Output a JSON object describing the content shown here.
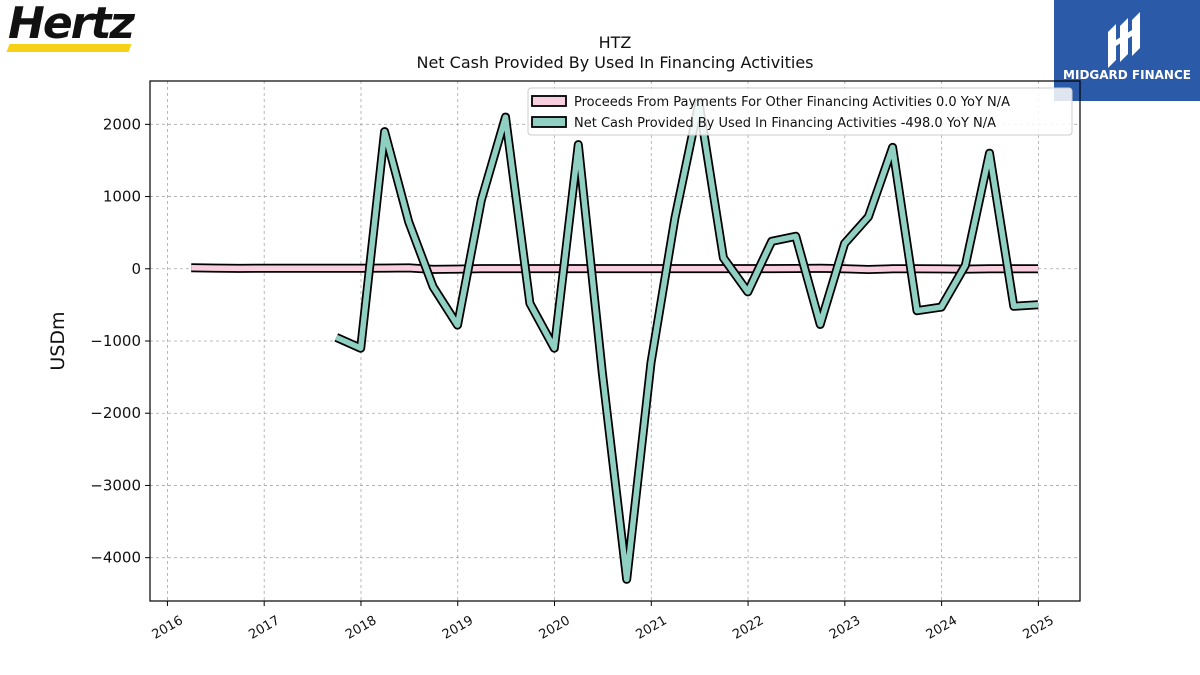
{
  "logos": {
    "left_text": "Hertz",
    "left_accent": "#f7d117",
    "right_text": "MIDGARD FINANCE",
    "right_color": "#2b5aa8"
  },
  "chart_data": {
    "type": "line",
    "title": "HTZ",
    "subtitle": "Net Cash Provided By Used In Financing Activities",
    "ylabel": "USDm",
    "xlabel": "",
    "xlim": [
      2015.82,
      2025.43
    ],
    "ylim": [
      -4600,
      2600
    ],
    "x_ticks": [
      2016,
      2017,
      2018,
      2019,
      2020,
      2021,
      2022,
      2023,
      2024,
      2025
    ],
    "x_tick_labels": [
      "2016",
      "2017",
      "2018",
      "2019",
      "2020",
      "2021",
      "2022",
      "2023",
      "2024",
      "2025"
    ],
    "y_ticks": [
      -4000,
      -3000,
      -2000,
      -1000,
      0,
      1000,
      2000
    ],
    "y_tick_labels": [
      "−4000",
      "−3000",
      "−2000",
      "−1000",
      "0",
      "1000",
      "2000"
    ],
    "grid": true,
    "legend_position": "top-right",
    "series": [
      {
        "name": "Proceeds From Payments For Other Financing Activities  0.0 YoY N/A",
        "color": "#f9cfe0",
        "x": [
          "2016-03-31",
          "2016-06-30",
          "2016-09-30",
          "2016-12-31",
          "2017-03-31",
          "2017-06-30",
          "2017-09-30",
          "2017-12-31",
          "2018-03-31",
          "2018-06-30",
          "2018-09-30",
          "2018-12-31",
          "2019-03-31",
          "2019-06-30",
          "2019-09-30",
          "2019-12-31",
          "2020-03-31",
          "2020-06-30",
          "2020-09-30",
          "2020-12-31",
          "2021-03-31",
          "2021-06-30",
          "2021-09-30",
          "2021-12-31",
          "2022-03-31",
          "2022-06-30",
          "2022-09-30",
          "2022-12-31",
          "2023-03-31",
          "2023-06-30",
          "2023-09-30",
          "2023-12-31",
          "2024-03-31",
          "2024-06-30",
          "2024-09-30",
          "2024-12-31"
        ],
        "y": [
          15,
          10,
          5,
          8,
          6,
          6,
          8,
          8,
          9,
          12,
          -8,
          -5,
          3,
          3,
          3,
          3,
          3,
          3,
          3,
          3,
          3,
          2,
          2,
          2,
          2,
          4,
          6,
          0,
          -10,
          0,
          0,
          -2,
          -5,
          0,
          0,
          0
        ]
      },
      {
        "name": "Net Cash Provided By Used In Financing Activities  -498.0 YoY N/A",
        "color": "#8fd0c3",
        "x": [
          "2017-09-30",
          "2017-12-31",
          "2018-03-31",
          "2018-06-30",
          "2018-09-30",
          "2018-12-31",
          "2019-03-31",
          "2019-06-30",
          "2019-09-30",
          "2019-12-31",
          "2020-03-31",
          "2020-06-30",
          "2020-09-30",
          "2020-12-31",
          "2021-03-31",
          "2021-06-30",
          "2021-09-30",
          "2021-12-31",
          "2022-03-31",
          "2022-06-30",
          "2022-09-30",
          "2022-12-31",
          "2023-03-31",
          "2023-06-30",
          "2023-09-30",
          "2023-12-31",
          "2024-03-31",
          "2024-06-30",
          "2024-09-30",
          "2024-12-31"
        ],
        "y": [
          -950,
          -1100,
          1900,
          650,
          -250,
          -780,
          950,
          2100,
          -480,
          -1100,
          1720,
          -1450,
          -4300,
          -1300,
          700,
          2300,
          150,
          -320,
          380,
          450,
          -770,
          350,
          720,
          1680,
          -580,
          -530,
          50,
          1600,
          -520,
          -498
        ]
      }
    ]
  }
}
